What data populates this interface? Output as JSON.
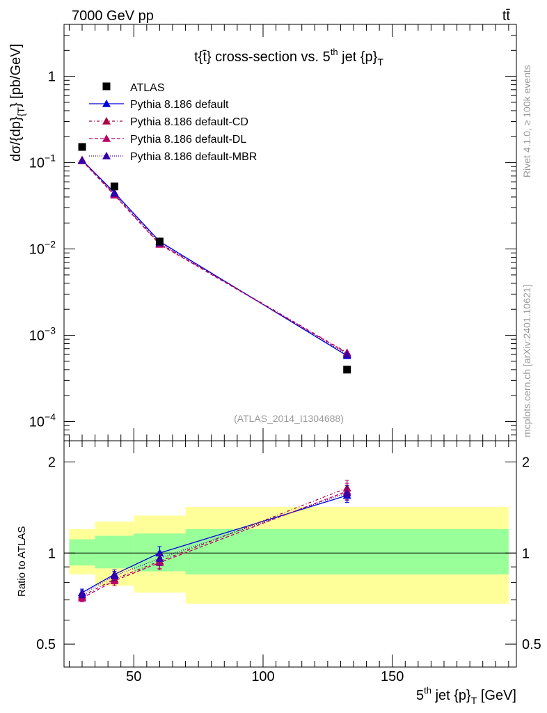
{
  "header": {
    "energy_label": "7000 GeV pp",
    "process_label": "tt̄",
    "side_label_top": "Rivet 4.1.0, ≥ 100k events",
    "side_label_bottom": "mcplots.cern.ch [arXiv:2401.10621]"
  },
  "chart_data": [
    {
      "type": "line",
      "title": "t{t̄} cross-section vs. 5th jet {p}T",
      "title_parts": {
        "a": "t{t̄} cross-section vs. 5",
        "sup": "th",
        "b": " jet {p}",
        "sub": "T"
      },
      "ylabel": "dσ/{dp}{T} [pb/GeV]",
      "ylabel_parts": {
        "a": "dσ/{dp}",
        "sub": "{T",
        "b": "} [pb/GeV]"
      },
      "yscale": "log",
      "ylim": [
        6e-05,
        4
      ],
      "xlim": [
        23,
        198
      ],
      "yticks": [
        {
          "value": 1,
          "base": "1",
          "exp": ""
        },
        {
          "value": 0.1,
          "base": "10",
          "exp": "−1"
        },
        {
          "value": 0.01,
          "base": "10",
          "exp": "−2"
        },
        {
          "value": 0.001,
          "base": "10",
          "exp": "−3"
        },
        {
          "value": 0.0001,
          "base": "10",
          "exp": "−4"
        }
      ],
      "watermark": "(ATLAS_2014_I1304688)",
      "legend_position": "top-left",
      "reference": {
        "name": "ATLAS",
        "color": "#000000",
        "x": [
          30,
          42.5,
          60,
          132.5
        ],
        "y": [
          0.152,
          0.053,
          0.0122,
          0.0004
        ]
      },
      "series": [
        {
          "name": "Pythia 8.186 default",
          "color": "#0000dd",
          "dash": "",
          "x": [
            30,
            42.5,
            60,
            132.5
          ],
          "y": [
            0.107,
            0.045,
            0.0122,
            0.00058
          ]
        },
        {
          "name": "Pythia 8.186 default-CD",
          "color": "#aa0044",
          "dash": "4,3,1,3",
          "x": [
            30,
            42.5,
            60,
            132.5
          ],
          "y": [
            0.108,
            0.043,
            0.0115,
            0.00063
          ]
        },
        {
          "name": "Pythia 8.186 default-DL",
          "color": "#bb0066",
          "dash": "5,3",
          "x": [
            30,
            42.5,
            60,
            132.5
          ],
          "y": [
            0.105,
            0.042,
            0.0113,
            0.00062
          ]
        },
        {
          "name": "Pythia 8.186 default-MBR",
          "color": "#3300aa",
          "dash": "1,2",
          "x": [
            30,
            42.5,
            60,
            132.5
          ],
          "y": [
            0.106,
            0.044,
            0.0118,
            0.0006
          ]
        }
      ]
    },
    {
      "type": "line",
      "title": "",
      "ylabel": "Ratio to ATLAS",
      "xlabel": "5th jet {p}T [GeV]",
      "xlabel_parts": {
        "a": "5",
        "sup": "th",
        "b": " jet {p}",
        "sub": "T",
        "c": " [GeV]"
      },
      "yscale": "log",
      "ylim": [
        0.42,
        2.35
      ],
      "xlim": [
        23,
        198
      ],
      "yticks": [
        {
          "value": 2,
          "label": "2"
        },
        {
          "value": 1,
          "label": "1"
        },
        {
          "value": 0.5,
          "label": "0.5"
        }
      ],
      "xticks": [
        {
          "value": 50,
          "label": "50"
        },
        {
          "value": 100,
          "label": "100"
        },
        {
          "value": 150,
          "label": "150"
        }
      ],
      "uncertainty_bands": [
        {
          "x_low": 25,
          "x_high": 35,
          "inner": [
            0.91,
            1.11
          ],
          "outer": [
            0.85,
            1.2
          ]
        },
        {
          "x_low": 35,
          "x_high": 50,
          "inner": [
            0.89,
            1.14
          ],
          "outer": [
            0.78,
            1.27
          ]
        },
        {
          "x_low": 50,
          "x_high": 70,
          "inner": [
            0.87,
            1.16
          ],
          "outer": [
            0.74,
            1.33
          ]
        },
        {
          "x_low": 70,
          "x_high": 195,
          "inner": [
            0.85,
            1.2
          ],
          "outer": [
            0.68,
            1.42
          ]
        }
      ],
      "series": [
        {
          "name": "Pythia 8.186 default",
          "color": "#0000dd",
          "dash": "",
          "x": [
            30,
            42.5,
            60,
            132.5
          ],
          "y": [
            0.74,
            0.85,
            1.0,
            1.55
          ],
          "err": [
            0.02,
            0.03,
            0.05,
            0.08
          ]
        },
        {
          "name": "Pythia 8.186 default-CD",
          "color": "#aa0044",
          "dash": "4,3,1,3",
          "x": [
            30,
            42.5,
            60,
            132.5
          ],
          "y": [
            0.72,
            0.82,
            0.94,
            1.64
          ],
          "err": [
            0.02,
            0.03,
            0.05,
            0.1
          ]
        },
        {
          "name": "Pythia 8.186 default-DL",
          "color": "#bb0066",
          "dash": "5,3",
          "x": [
            30,
            42.5,
            60,
            132.5
          ],
          "y": [
            0.71,
            0.81,
            0.93,
            1.6
          ],
          "err": [
            0.02,
            0.03,
            0.05,
            0.1
          ]
        },
        {
          "name": "Pythia 8.186 default-MBR",
          "color": "#3300aa",
          "dash": "1,2",
          "x": [
            30,
            42.5,
            60,
            132.5
          ],
          "y": [
            0.73,
            0.84,
            0.96,
            1.58
          ],
          "err": [
            0.02,
            0.03,
            0.05,
            0.09
          ]
        }
      ]
    }
  ]
}
